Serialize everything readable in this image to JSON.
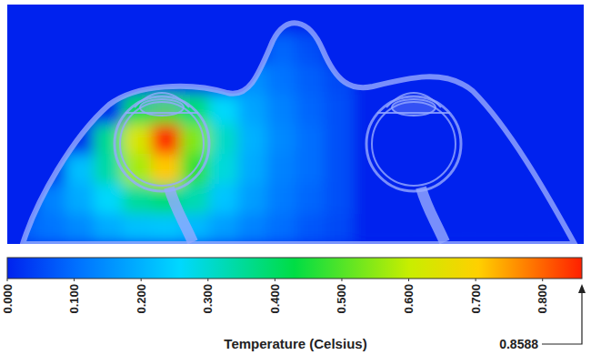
{
  "chart_data": {
    "type": "heatmap",
    "cells": [
      [
        0,
        0,
        0,
        0,
        0,
        0,
        0,
        0,
        0,
        0,
        0,
        0,
        0,
        0,
        0,
        0,
        0,
        0,
        0,
        0
      ],
      [
        0,
        0,
        0,
        0,
        0,
        0,
        0,
        0,
        0,
        0.09,
        0.06,
        0,
        0,
        0,
        0,
        0,
        0,
        0,
        0,
        0
      ],
      [
        0,
        0,
        0,
        0,
        0,
        0,
        0,
        0,
        0.15,
        0.11,
        0.08,
        0.05,
        0,
        0,
        0,
        0,
        0,
        0,
        0,
        0
      ],
      [
        0,
        0,
        0,
        0,
        0.41,
        0.47,
        0.38,
        0.26,
        0.18,
        0.13,
        0.09,
        0.06,
        0,
        0,
        0,
        0,
        0,
        0,
        0,
        0
      ],
      [
        0,
        0,
        0,
        0.36,
        0.63,
        0.8588,
        0.54,
        0.31,
        0.2,
        0.14,
        0.1,
        0.06,
        0,
        0,
        0,
        0,
        0,
        0,
        0,
        0
      ],
      [
        0,
        0,
        0.22,
        0.34,
        0.57,
        0.71,
        0.47,
        0.29,
        0.19,
        0.13,
        0.1,
        0.06,
        0,
        0,
        0,
        0,
        0,
        0,
        0,
        0
      ],
      [
        0,
        0.13,
        0.19,
        0.26,
        0.35,
        0.38,
        0.33,
        0.23,
        0.17,
        0.12,
        0.09,
        0.06,
        0,
        0,
        0,
        0,
        0,
        0,
        0,
        0
      ],
      [
        0.08,
        0.11,
        0.14,
        0.19,
        0.22,
        0.23,
        0.21,
        0.17,
        0.13,
        0.1,
        0.07,
        0.05,
        0,
        0,
        0,
        0,
        0,
        0,
        0,
        0
      ]
    ],
    "clim": [
      0,
      0.8588
    ],
    "cticks": [
      {
        "value": 0,
        "label": "0.000"
      },
      {
        "value": 0.1,
        "label": "0.100"
      },
      {
        "value": 0.2,
        "label": "0.200"
      },
      {
        "value": 0.3,
        "label": "0.300"
      },
      {
        "value": 0.4,
        "label": "0.400"
      },
      {
        "value": 0.5,
        "label": "0.500"
      },
      {
        "value": 0.6,
        "label": "0.600"
      },
      {
        "value": 0.7,
        "label": "0.700"
      },
      {
        "value": 0.8,
        "label": "0.800"
      }
    ],
    "colorbar_label": "Temperature (Celsius)",
    "tick_labels": false
  }
}
